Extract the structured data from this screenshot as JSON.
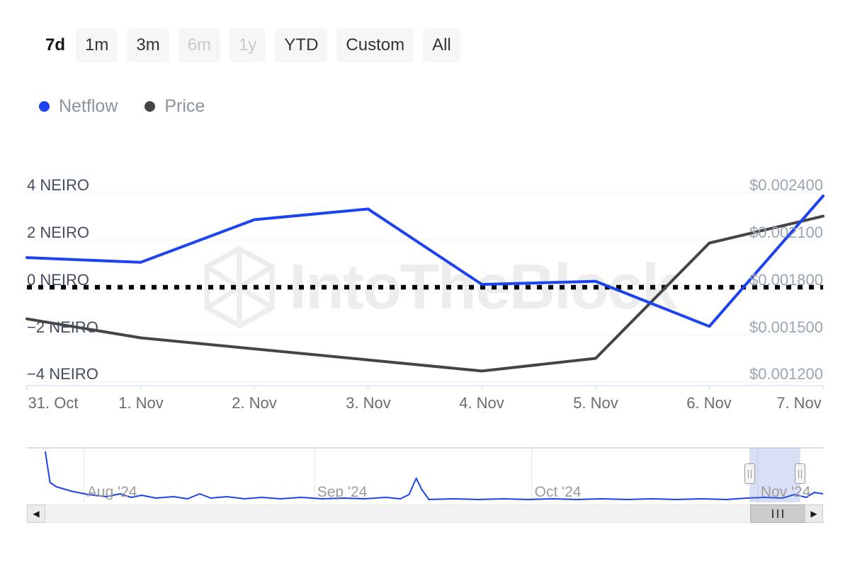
{
  "range_selector": {
    "selected": "7d",
    "buttons": [
      {
        "label": "7d",
        "state": "selected"
      },
      {
        "label": "1m",
        "state": "default"
      },
      {
        "label": "3m",
        "state": "default"
      },
      {
        "label": "6m",
        "state": "disabled"
      },
      {
        "label": "1y",
        "state": "disabled"
      },
      {
        "label": "YTD",
        "state": "default"
      },
      {
        "label": "Custom",
        "state": "default"
      },
      {
        "label": "All",
        "state": "default"
      }
    ]
  },
  "legend": [
    {
      "label": "Netflow",
      "color": "#1c43f0"
    },
    {
      "label": "Price",
      "color": "#454545"
    }
  ],
  "watermark": {
    "text": "IntoTheBlock"
  },
  "chart_data": {
    "type": "line",
    "categories": [
      "31. Oct",
      "1. Nov",
      "2. Nov",
      "3. Nov",
      "4. Nov",
      "5. Nov",
      "6. Nov",
      "7. Nov"
    ],
    "series": [
      {
        "name": "Netflow",
        "axis": "left",
        "unit": "NEIRO",
        "color": "#1c43f0",
        "values": [
          1.25,
          1.05,
          2.85,
          3.3,
          0.12,
          0.25,
          -1.65,
          3.85
        ]
      },
      {
        "name": "Price",
        "axis": "right",
        "unit": "USD",
        "color": "#454545",
        "values": [
          0.0016,
          0.00148,
          0.00141,
          0.00134,
          0.00127,
          0.00135,
          0.00208,
          0.00225
        ]
      }
    ],
    "left_axis": {
      "tick_values": [
        4,
        2,
        0,
        -2,
        -4
      ],
      "min": -4.15,
      "max": 4.95,
      "tick_labels": [
        "4 NEIRO",
        "2 NEIRO",
        "0 NEIRO",
        "−2 NEIRO",
        "−4 NEIRO"
      ]
    },
    "right_axis": {
      "tick_values": [
        0.0024,
        0.0021,
        0.0018,
        0.0015,
        0.0012
      ],
      "min": 0.00118,
      "max": 0.00254,
      "tick_labels": [
        "$0.002400",
        "$0.002100",
        "$0.001800",
        "$0.001500",
        "$0.001200"
      ]
    },
    "zero_line": {
      "value": 0,
      "style": "dotted",
      "color": "#000000"
    },
    "grid": "horizontal",
    "legend_position": "top-left",
    "navigator": {
      "month_labels": [
        {
          "label": "Aug '24",
          "x": 0.072
        },
        {
          "label": "Sep '24",
          "x": 0.361
        },
        {
          "label": "Oct '24",
          "x": 0.634
        },
        {
          "label": "Nov '24",
          "x": 0.918
        }
      ],
      "selection": {
        "from": 0.9075,
        "to": 0.9715
      },
      "selection_color": "rgba(102,133,214,0.25)",
      "sparkline_color": "#1c43f0",
      "sparkline": [
        [
          0.023,
          0.065
        ],
        [
          0.029,
          0.636
        ],
        [
          0.037,
          0.714
        ],
        [
          0.055,
          0.792
        ],
        [
          0.077,
          0.857
        ],
        [
          0.1,
          0.896
        ],
        [
          0.117,
          0.844
        ],
        [
          0.131,
          0.909
        ],
        [
          0.144,
          0.87
        ],
        [
          0.162,
          0.922
        ],
        [
          0.184,
          0.896
        ],
        [
          0.202,
          0.935
        ],
        [
          0.217,
          0.844
        ],
        [
          0.231,
          0.922
        ],
        [
          0.251,
          0.896
        ],
        [
          0.273,
          0.935
        ],
        [
          0.295,
          0.909
        ],
        [
          0.318,
          0.935
        ],
        [
          0.344,
          0.909
        ],
        [
          0.371,
          0.935
        ],
        [
          0.398,
          0.922
        ],
        [
          0.424,
          0.935
        ],
        [
          0.451,
          0.909
        ],
        [
          0.469,
          0.935
        ],
        [
          0.48,
          0.857
        ],
        [
          0.489,
          0.558
        ],
        [
          0.496,
          0.766
        ],
        [
          0.505,
          0.948
        ],
        [
          0.536,
          0.935
        ],
        [
          0.567,
          0.948
        ],
        [
          0.598,
          0.935
        ],
        [
          0.629,
          0.948
        ],
        [
          0.66,
          0.935
        ],
        [
          0.691,
          0.948
        ],
        [
          0.722,
          0.935
        ],
        [
          0.754,
          0.948
        ],
        [
          0.785,
          0.935
        ],
        [
          0.816,
          0.948
        ],
        [
          0.847,
          0.935
        ],
        [
          0.878,
          0.948
        ],
        [
          0.905,
          0.922
        ],
        [
          0.927,
          0.909
        ],
        [
          0.949,
          0.922
        ],
        [
          0.964,
          0.857
        ],
        [
          0.979,
          0.909
        ],
        [
          0.989,
          0.818
        ],
        [
          1.0,
          0.844
        ]
      ]
    }
  },
  "scrollbar": {
    "left_arrow": "◀",
    "right_arrow": "▶"
  }
}
